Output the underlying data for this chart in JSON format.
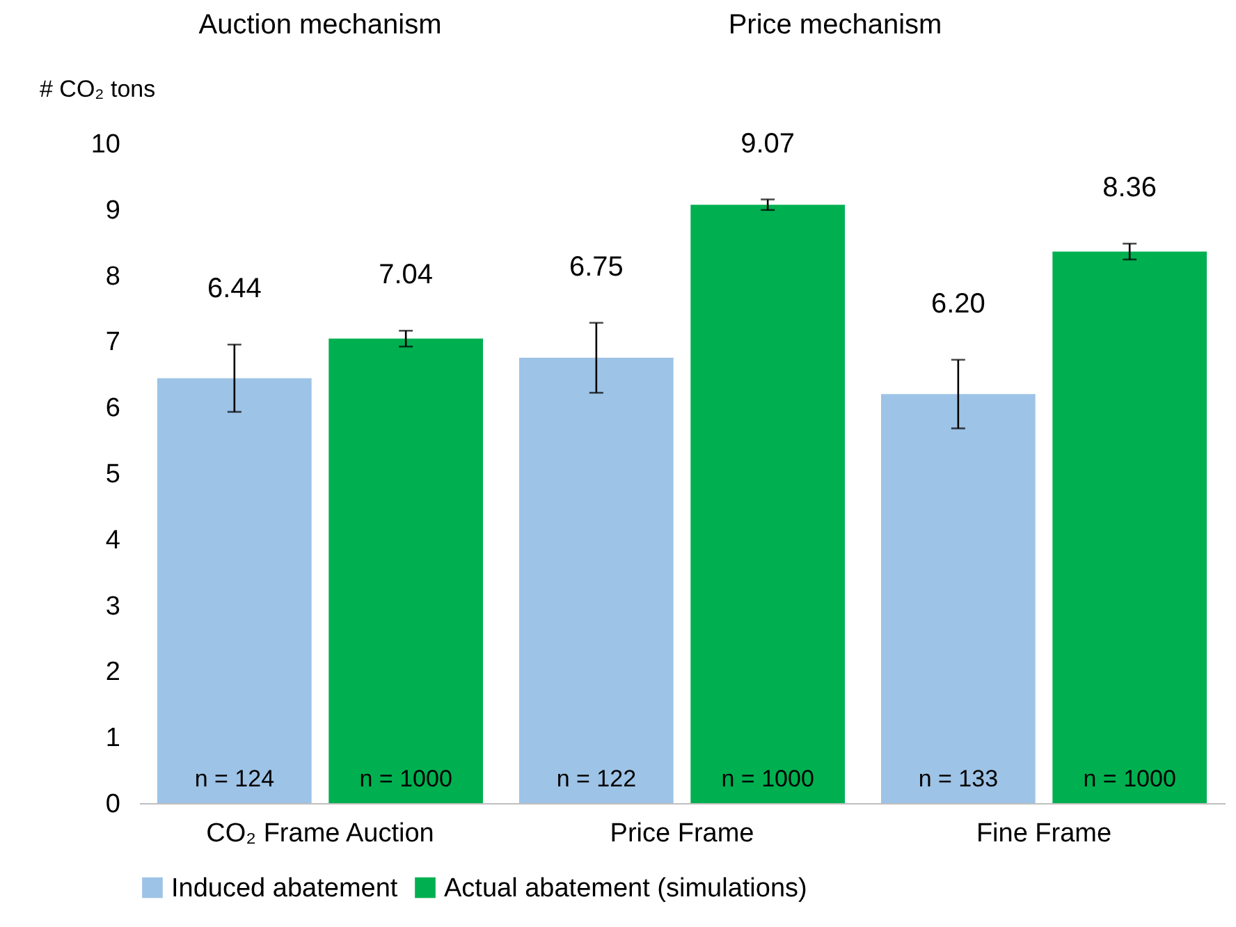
{
  "chart_data": {
    "type": "bar",
    "ylabel": "# CO₂ tons",
    "categories": [
      "CO₂ Frame Auction",
      "Price Frame",
      "Fine Frame"
    ],
    "series": [
      {
        "name": "Induced abatement",
        "color": "#9dc3e6",
        "values": [
          6.44,
          6.75,
          6.2
        ],
        "errors": [
          0.51,
          0.53,
          0.52
        ],
        "value_labels": [
          "6.44",
          "6.75",
          "6.20"
        ]
      },
      {
        "name": "Actual abatement (simulations)",
        "color": "#00b050",
        "values": [
          7.04,
          9.07,
          8.36
        ],
        "errors": [
          0.12,
          0.08,
          0.12
        ],
        "value_labels": [
          "7.04",
          "9.07",
          "8.36"
        ]
      }
    ],
    "ylim": [
      0,
      10
    ],
    "yticks": [
      0,
      1,
      2,
      3,
      4,
      5,
      6,
      7,
      8,
      9,
      10
    ],
    "grid": false,
    "legend": "bottom",
    "annotations": [
      "Auction mechanism",
      "Price mechanism",
      "n = 124",
      "n = 1000",
      "n = 122",
      "n = 1000",
      "n = 133",
      "n = 1000"
    ]
  }
}
